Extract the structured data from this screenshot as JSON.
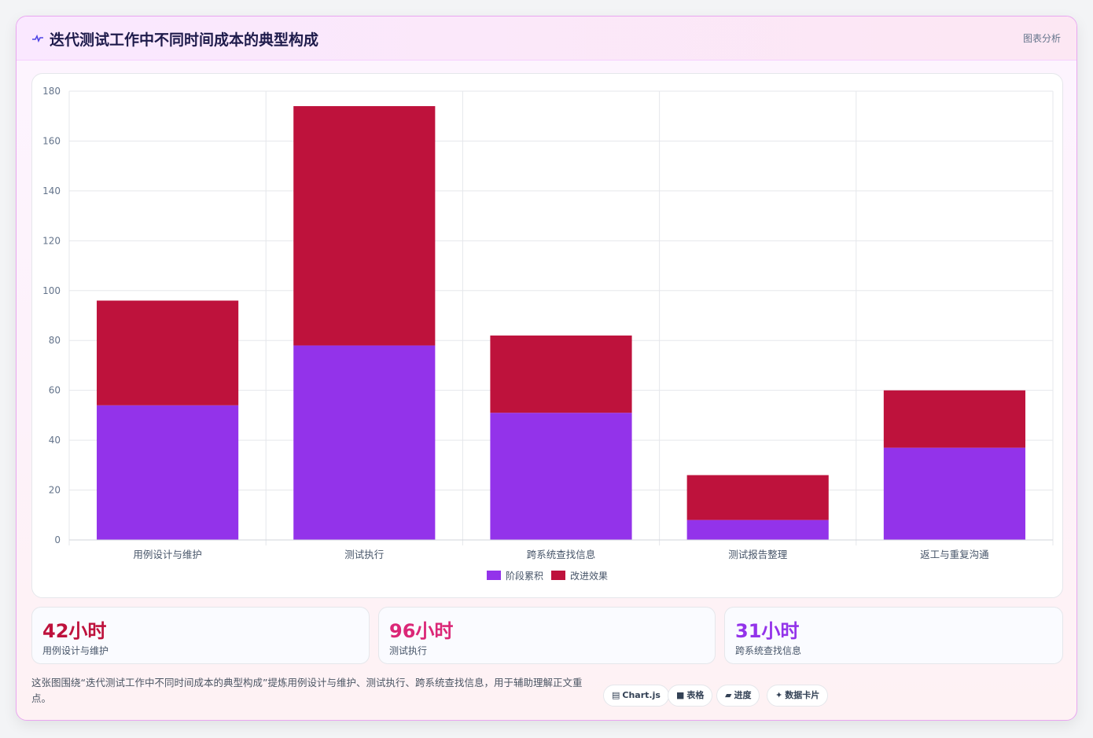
{
  "header": {
    "title": "迭代测试工作中不同时间成本的典型构成",
    "tag": "图表分析"
  },
  "colors": {
    "series_a": "#9333ea",
    "series_b": "#be123c",
    "stat_1": "#be123c",
    "stat_2": "#db2777",
    "stat_3": "#9333ea"
  },
  "chart_data": {
    "type": "bar",
    "stacked": true,
    "categories": [
      "用例设计与维护",
      "测试执行",
      "跨系统查找信息",
      "测试报告整理",
      "返工与重复沟通"
    ],
    "series": [
      {
        "name": "阶段累积",
        "values": [
          54,
          78,
          51,
          8,
          37
        ]
      },
      {
        "name": "改进效果",
        "values": [
          42,
          96,
          31,
          18,
          23
        ]
      }
    ],
    "ylim": [
      0,
      180
    ],
    "yticks": [
      0,
      20,
      40,
      60,
      80,
      100,
      120,
      140,
      160,
      180
    ],
    "grid": true,
    "legend": "bottom-center",
    "title": "",
    "xlabel": "",
    "ylabel": ""
  },
  "stats": [
    {
      "value": "42小时",
      "label": "用例设计与维护"
    },
    {
      "value": "96小时",
      "label": "测试执行"
    },
    {
      "value": "31小时",
      "label": "跨系统查找信息"
    }
  ],
  "footer": {
    "description": "这张图围绕“迭代测试工作中不同时间成本的典型构成”提炼用例设计与维护、测试执行、跨系统查找信息，用于辅助理解正文重点。",
    "chips": [
      {
        "icon": "chart-icon",
        "glyph": "▤",
        "label": "Chart.js"
      },
      {
        "icon": "table-icon",
        "glyph": "■",
        "label": "表格"
      },
      {
        "icon": "progress-icon",
        "glyph": "▰",
        "label": "进度"
      },
      {
        "icon": "card-icon",
        "glyph": "✦",
        "label": "数据卡片"
      }
    ]
  }
}
